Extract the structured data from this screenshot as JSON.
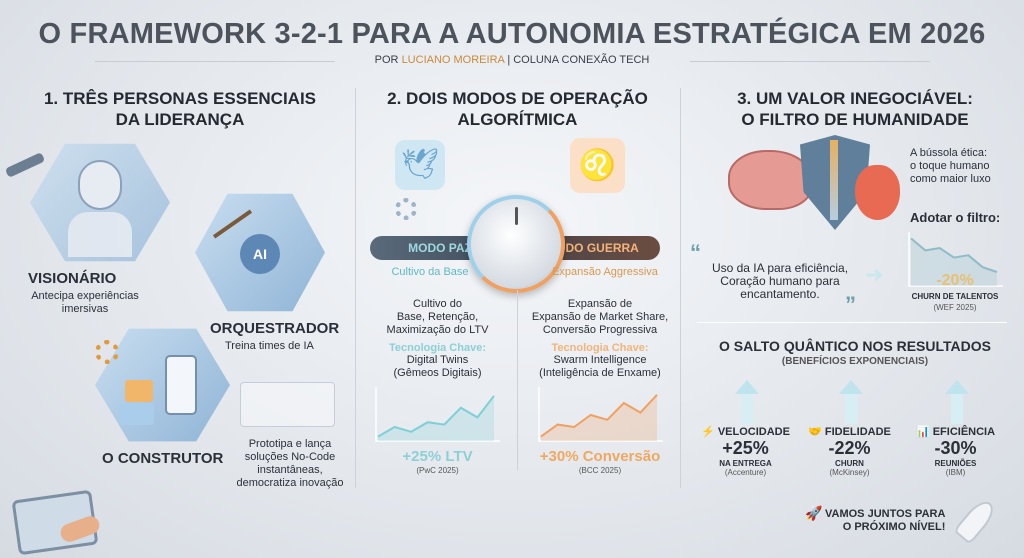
{
  "header": {
    "title": "O FRAMEWORK 3-2-1 PARA A AUTONOMIA ESTRATÉGICA EM 2026",
    "by_prefix": "POR",
    "author": "LUCIANO MOREIRA",
    "by_suffix": "| COLUNA CONEXÃO TECH"
  },
  "col1": {
    "heading_1": "1. TRÊS PERSONAS ESSENCIAIS",
    "heading_2": "DA LIDERANÇA",
    "personas": [
      {
        "name": "VISIONÁRIO",
        "desc_1": "Antecipa experiências",
        "desc_2": "imersivas"
      },
      {
        "name": "ORQUESTRADOR",
        "desc_1": "Treina times de IA"
      },
      {
        "name": "O CONSTRUTOR",
        "desc_1": "Prototipa e lança",
        "desc_2": "soluções No-Code",
        "desc_3": "instantâneas,",
        "desc_4": "democratiza inovação"
      }
    ],
    "ai_label": "AI"
  },
  "col2": {
    "heading_1": "2. DOIS MODOS DE OPERAÇÃO",
    "heading_2": "ALGORÍTMICA",
    "peace": {
      "mode": "MODO PAZ",
      "sub": "Cultivo da Base",
      "body_1": "Cultivo do",
      "body_2": "Base, Retenção,",
      "body_3": "Maximização do LTV",
      "tech_label": "Tecnologia Chave:",
      "tech_1": "Digital Twins",
      "tech_2": "(Gêmeos Digitais)",
      "result": "+25% LTV",
      "source": "(PwC 2025)",
      "color": "#7fcfd6"
    },
    "war": {
      "mode": "MODO GUERRA",
      "sub": "Expansão Aggressiva",
      "body_1": "Expansão de",
      "body_2": "Expansão de Market Share,",
      "body_3": "Conversão Progressiva",
      "tech_label": "Tecnologia Chave:",
      "tech_1": "Swarm Intelligence",
      "tech_2": "(Inteligência de Enxame)",
      "result": "+30% Conversão",
      "source": "(BCC 2025)",
      "color": "#f0a060"
    }
  },
  "col3": {
    "heading_1": "3. UM VALOR INEGOCIÁVEL:",
    "heading_2": "O FILTRO DE HUMANIDADE",
    "compass_1": "A bússola ética:",
    "compass_2": "o toque humano",
    "compass_3": "como maior luxo",
    "adopt": "Adotar o filtro:",
    "quote_1": "Uso da IA para eficiência,",
    "quote_2": "Coração humano para",
    "quote_3": "encantamento.",
    "churn_value": "-20%",
    "churn_label": "CHURN DE TALENTOS",
    "churn_source": "(WEF 2025)",
    "results_title": "O SALTO QUÂNTICO NOS RESULTADOS",
    "results_sub": "(BENEFÍCIOS EXPONENCIAIS)",
    "kpis": [
      {
        "label": "VELOCIDADE",
        "icon": "lightning-icon",
        "value": "+25%",
        "sub": "NA ENTREGA",
        "source": "(Accenture)"
      },
      {
        "label": "FIDELIDADE",
        "icon": "handshake-icon",
        "value": "-22%",
        "sub": "CHURN",
        "source": "(McKinsey)"
      },
      {
        "label": "EFICIÊNCIA",
        "icon": "bar-chart-icon",
        "value": "-30%",
        "sub": "REUNIÕES",
        "source": "(IBM)"
      }
    ],
    "cta_1": "VAMOS JUNTOS PARA",
    "cta_2": "O PRÓXIMO NÍVEL!"
  }
}
